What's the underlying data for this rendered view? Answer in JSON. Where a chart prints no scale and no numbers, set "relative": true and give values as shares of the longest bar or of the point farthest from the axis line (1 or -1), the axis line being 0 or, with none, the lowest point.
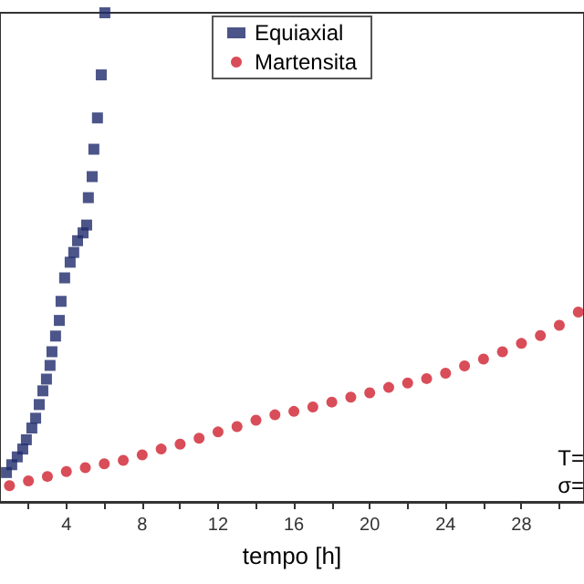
{
  "chart_data": {
    "type": "scatter",
    "xlabel": "tempo [h]",
    "relative": true,
    "legend": "top",
    "grid": false,
    "xlim": [
      0.5,
      31.3
    ],
    "xticks": [
      {
        "value": 2,
        "label": null
      },
      4,
      {
        "value": 6,
        "label": null
      },
      8,
      {
        "value": 10,
        "label": null
      },
      12,
      {
        "value": 14,
        "label": null
      },
      16,
      {
        "value": 18,
        "label": null
      },
      20,
      {
        "value": 22,
        "label": null
      },
      24,
      {
        "value": 26,
        "label": null
      },
      28,
      {
        "value": 30,
        "label": null
      }
    ],
    "series": [
      {
        "name": "Equiaxial",
        "color": "#1f2a6b",
        "marker": "square",
        "x": [
          0.84,
          1.12,
          1.41,
          1.7,
          1.89,
          2.18,
          2.38,
          2.57,
          2.76,
          2.95,
          3.14,
          3.24,
          3.43,
          3.63,
          3.72,
          3.91,
          4.2,
          4.39,
          4.59,
          4.88,
          5.07,
          5.16,
          5.36,
          5.45,
          5.64,
          5.84,
          6.03
        ],
        "values": [
          0.06,
          0.076,
          0.092,
          0.108,
          0.127,
          0.151,
          0.171,
          0.199,
          0.227,
          0.251,
          0.279,
          0.307,
          0.339,
          0.371,
          0.41,
          0.458,
          0.49,
          0.51,
          0.534,
          0.55,
          0.566,
          0.622,
          0.665,
          0.721,
          0.785,
          0.873,
          1.0
        ]
      },
      {
        "name": "Martensita",
        "color": "#d0202e",
        "marker": "circle",
        "x": [
          1,
          2,
          3,
          4,
          5,
          6,
          7,
          8,
          9,
          10,
          11,
          12,
          13,
          14,
          15,
          16,
          17,
          18,
          19,
          20,
          21,
          22,
          23,
          24,
          25,
          26,
          27,
          28,
          29,
          30,
          31
        ],
        "values": [
          0.033,
          0.043,
          0.052,
          0.062,
          0.07,
          0.078,
          0.085,
          0.096,
          0.108,
          0.118,
          0.13,
          0.143,
          0.154,
          0.167,
          0.178,
          0.185,
          0.194,
          0.204,
          0.214,
          0.223,
          0.234,
          0.243,
          0.252,
          0.263,
          0.278,
          0.292,
          0.307,
          0.324,
          0.34,
          0.361,
          0.388
        ]
      }
    ],
    "annotations": [
      "T=",
      "σ="
    ]
  }
}
